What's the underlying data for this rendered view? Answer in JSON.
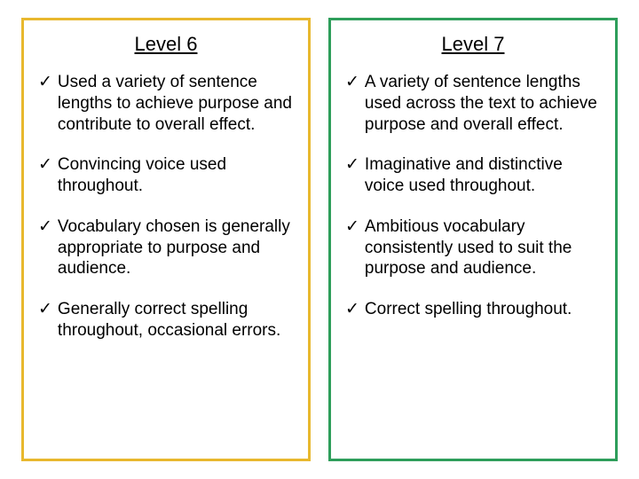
{
  "left": {
    "title": "Level 6",
    "border_color": "#e8b82e",
    "check_mark": "✓",
    "items": [
      "Used a variety of sentence lengths to achieve purpose and contribute to overall effect.",
      "Convincing voice used throughout.",
      "Vocabulary chosen is generally appropriate to purpose and audience.",
      "Generally correct spelling throughout, occasional errors."
    ]
  },
  "right": {
    "title": "Level 7",
    "border_color": "#2e9e5b",
    "check_mark": "✓",
    "items": [
      "A variety of sentence lengths used across the text to achieve purpose and overall effect.",
      "Imaginative and distinctive voice used throughout.",
      "Ambitious vocabulary consistently used to suit the purpose and audience.",
      "Correct spelling throughout."
    ]
  }
}
